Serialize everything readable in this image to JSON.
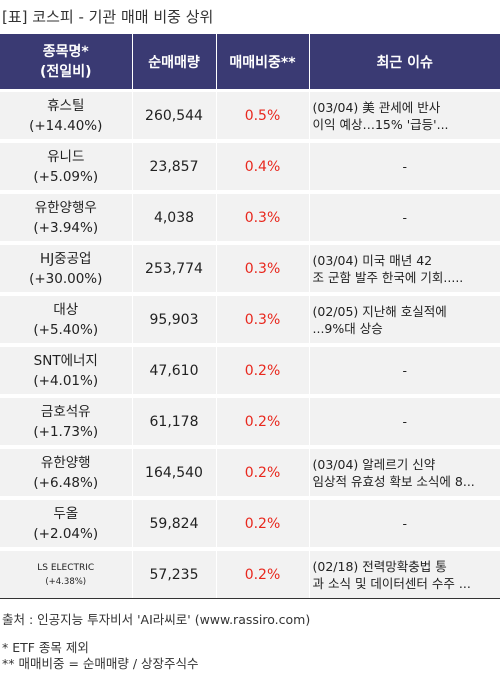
{
  "title": "[표] 코스피 - 기관 매매 비중 상위",
  "header": {
    "name_line1": "종목명*",
    "name_line2": "(전일비)",
    "volume": "순매매량",
    "ratio": "매매비중**",
    "issue": "최근 이슈"
  },
  "rows": [
    {
      "name": "휴스틸",
      "change": "(+14.40%)",
      "volume": "260,544",
      "ratio": "0.5%",
      "issue": "(03/04) 美 관세에 반사\n이익 예상…15% '급등'..."
    },
    {
      "name": "유니드",
      "change": "(+5.09%)",
      "volume": "23,857",
      "ratio": "0.4%",
      "issue": "-"
    },
    {
      "name": "유한양행우",
      "change": "(+3.94%)",
      "volume": "4,038",
      "ratio": "0.3%",
      "issue": "-"
    },
    {
      "name": "HJ중공업",
      "change": "(+30.00%)",
      "volume": "253,774",
      "ratio": "0.3%",
      "issue": "(03/04) 미국 매년 42\n조 군함 발주 한국에 기회....."
    },
    {
      "name": "대상",
      "change": "(+5.40%)",
      "volume": "95,903",
      "ratio": "0.3%",
      "issue": "(02/05) 지난해 호실적에\n...9%대 상승"
    },
    {
      "name": "SNT에너지",
      "change": "(+4.01%)",
      "volume": "47,610",
      "ratio": "0.2%",
      "issue": "-"
    },
    {
      "name": "금호석유",
      "change": "(+1.73%)",
      "volume": "61,178",
      "ratio": "0.2%",
      "issue": "-"
    },
    {
      "name": "유한양행",
      "change": "(+6.48%)",
      "volume": "164,540",
      "ratio": "0.2%",
      "issue": "(03/04) 알레르기 신약\n임상적 유효성 확보 소식에 8..."
    },
    {
      "name": "두올",
      "change": "(+2.04%)",
      "volume": "59,824",
      "ratio": "0.2%",
      "issue": "-"
    },
    {
      "name": "LS ELECTRIC",
      "change": "(+4.38%)",
      "volume": "57,235",
      "ratio": "0.2%",
      "issue": "(02/18) 전력망확충법 통\n과 소식 및 데이터센터 수주 ..."
    }
  ],
  "footer": {
    "source": "출처 : 인공지능 투자비서 'AI라씨로' (www.rassiro.com)",
    "note1": "* ETF 종목 제외",
    "note2": "** 매매비중 = 순매매량 / 상장주식수"
  },
  "colors": {
    "header_bg": "#3a3a73",
    "row_bg": "#f2f2f2",
    "ratio_text": "#e8281e"
  }
}
